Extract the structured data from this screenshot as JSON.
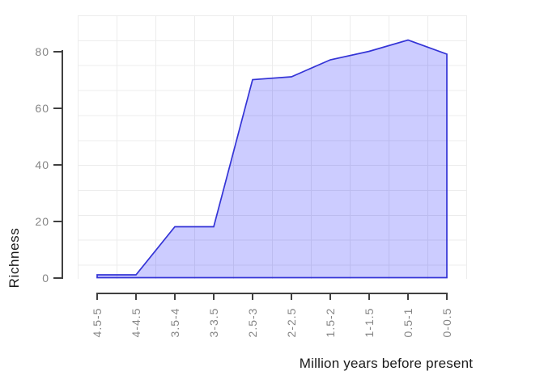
{
  "chart_data": {
    "type": "area",
    "title": "",
    "xlabel": "Million years before present",
    "ylabel": "Richness",
    "categories": [
      "4.5-5",
      "4-4.5",
      "3.5-4",
      "3-3.5",
      "2.5-3",
      "2-2.5",
      "1.5-2",
      "1-1.5",
      "0.5-1",
      "0-0.5"
    ],
    "values": [
      1,
      1,
      18,
      18,
      70,
      71,
      77,
      80,
      84,
      79
    ],
    "y_ticks": [
      0,
      20,
      40,
      60,
      80
    ],
    "ylim": [
      0,
      93
    ],
    "grid": "on",
    "legend": "none",
    "colors": {
      "area_fill": "rgba(0,0,255,0.2)",
      "area_stroke": "#3434d6",
      "grid_line": "#ececec",
      "axis_line": "#404040",
      "tick_label": "#858585",
      "axis_title": "#1a1a1a"
    }
  }
}
